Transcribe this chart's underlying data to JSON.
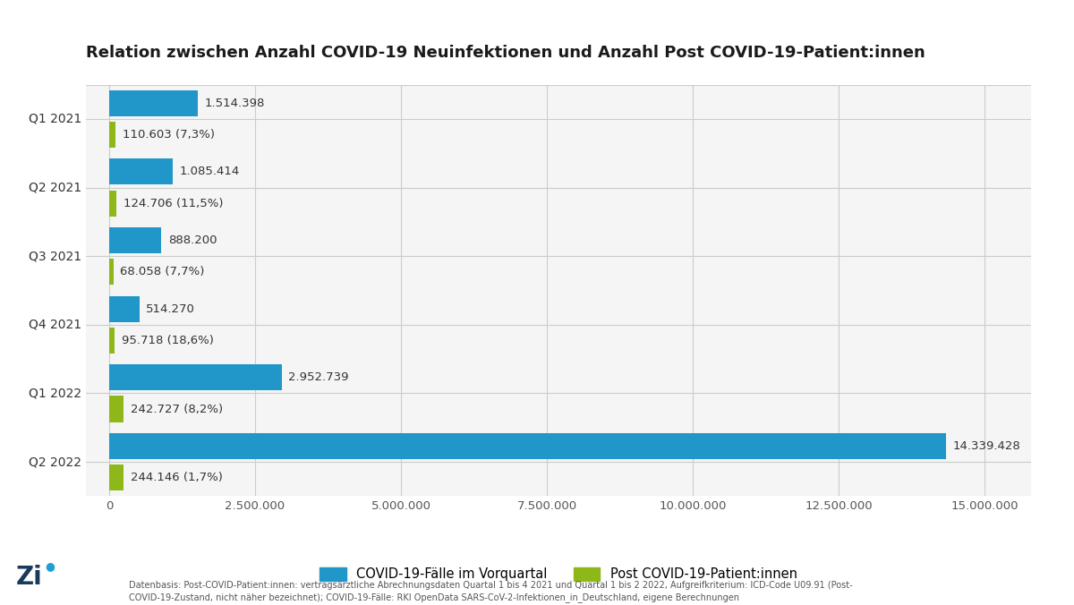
{
  "title": "Relation zwischen Anzahl COVID-19 Neuinfektionen und Anzahl Post COVID-19-Patient:innen",
  "categories": [
    "Q1 2021",
    "Q2 2021",
    "Q3 2021",
    "Q4 2021",
    "Q1 2022",
    "Q2 2022"
  ],
  "covid_values": [
    1514398,
    1085414,
    888200,
    514270,
    2952739,
    14339428
  ],
  "covid_labels": [
    "1.514.398",
    "1.085.414",
    "888.200",
    "514.270",
    "2.952.739",
    "14.339.428"
  ],
  "post_values": [
    110603,
    124706,
    68058,
    95718,
    242727,
    244146
  ],
  "post_labels": [
    "110.603 (7,3%)",
    "124.706 (11,5%)",
    "68.058 (7,7%)",
    "95.718 (18,6%)",
    "242.727 (8,2%)",
    "244.146 (1,7%)"
  ],
  "covid_color": "#2196c8",
  "post_color": "#8eb81a",
  "background_color": "#ffffff",
  "plot_bg_color": "#f5f5f5",
  "title_fontsize": 13,
  "label_fontsize": 9.5,
  "tick_fontsize": 9.5,
  "legend_label_covid": "COVID-19-Fälle im Vorquartal",
  "legend_label_post": "Post COVID-19-Patient:innen",
  "xlim": [
    -400000,
    15800000
  ],
  "xticks": [
    0,
    2500000,
    5000000,
    7500000,
    10000000,
    12500000,
    15000000
  ],
  "xtick_labels": [
    "0",
    "2.500.000",
    "5.000.000",
    "7.500.000",
    "10.000.000",
    "12.500.000",
    "15.000.000"
  ],
  "footnote_line1": "Datenbasis: Post-COVID-Patient:innen: vertragsärztliche Abrechnungsdaten Quartal 1 bis 4 2021 und Quartal 1 bis 2 2022, Aufgreifkriterium: ICD-Code U09.91 (Post-",
  "footnote_line2": "COVID-19-Zustand, nicht näher bezeichnet); COVID-19-Fälle: RKI OpenData SARS-CoV-2-Infektionen_in_Deutschland, eigene Berechnungen",
  "zi_blue": "#1e9fd4",
  "zi_dark": "#1a3a5c",
  "grid_color": "#cccccc"
}
